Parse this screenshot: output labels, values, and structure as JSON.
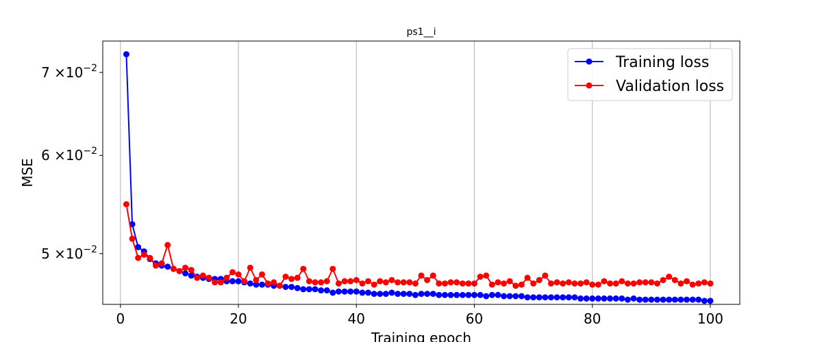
{
  "chart_data": {
    "type": "line",
    "title": "ps1__i",
    "xlabel": "Training epoch",
    "ylabel": "MSE",
    "xlim": [
      -3,
      105
    ],
    "ylim": [
      0.0455,
      0.0742
    ],
    "yscale": "log",
    "grid": "x-only",
    "legend_position": "top-right",
    "x_ticks": [
      0,
      20,
      40,
      60,
      80,
      100
    ],
    "x_tick_labels": [
      "0",
      "20",
      "40",
      "60",
      "80",
      "100"
    ],
    "y_ticks": [
      0.05,
      0.06,
      0.07
    ],
    "y_tick_labels": [
      {
        "mantissa": "5",
        "exp": "−2"
      },
      {
        "mantissa": "6",
        "exp": "−2"
      },
      {
        "mantissa": "7",
        "exp": "−2"
      }
    ],
    "y_tick_label_mid": "×10",
    "x": [
      1,
      2,
      3,
      4,
      5,
      6,
      7,
      8,
      9,
      10,
      11,
      12,
      13,
      14,
      15,
      16,
      17,
      18,
      19,
      20,
      21,
      22,
      23,
      24,
      25,
      26,
      27,
      28,
      29,
      30,
      31,
      32,
      33,
      34,
      35,
      36,
      37,
      38,
      39,
      40,
      41,
      42,
      43,
      44,
      45,
      46,
      47,
      48,
      49,
      50,
      51,
      52,
      53,
      54,
      55,
      56,
      57,
      58,
      59,
      60,
      61,
      62,
      63,
      64,
      65,
      66,
      67,
      68,
      69,
      70,
      71,
      72,
      73,
      74,
      75,
      76,
      77,
      78,
      79,
      80,
      81,
      82,
      83,
      84,
      85,
      86,
      87,
      88,
      89,
      90,
      91,
      92,
      93,
      94,
      95,
      96,
      97,
      98,
      99,
      100
    ],
    "series": [
      {
        "name": "Training loss",
        "color": "#0000ff",
        "values": [
          0.0724,
          0.0528,
          0.0506,
          0.0502,
          0.0495,
          0.0491,
          0.0489,
          0.0488,
          0.0486,
          0.0484,
          0.0482,
          0.048,
          0.0479,
          0.0478,
          0.0477,
          0.0477,
          0.0477,
          0.0475,
          0.0475,
          0.0475,
          0.0474,
          0.0473,
          0.0472,
          0.0472,
          0.0472,
          0.0471,
          0.0471,
          0.047,
          0.047,
          0.0469,
          0.0468,
          0.0468,
          0.0468,
          0.0467,
          0.0467,
          0.0465,
          0.0466,
          0.0466,
          0.0466,
          0.0466,
          0.0465,
          0.0465,
          0.0464,
          0.0464,
          0.0464,
          0.0465,
          0.0464,
          0.0464,
          0.0464,
          0.0463,
          0.0464,
          0.0464,
          0.0464,
          0.0463,
          0.0463,
          0.0463,
          0.0463,
          0.0463,
          0.0463,
          0.0463,
          0.0463,
          0.0462,
          0.0463,
          0.0463,
          0.0462,
          0.0462,
          0.0462,
          0.0462,
          0.0461,
          0.0461,
          0.0461,
          0.0461,
          0.0461,
          0.0461,
          0.0461,
          0.0461,
          0.0461,
          0.046,
          0.046,
          0.046,
          0.046,
          0.046,
          0.046,
          0.046,
          0.046,
          0.0459,
          0.046,
          0.0459,
          0.0459,
          0.0459,
          0.0459,
          0.0459,
          0.0459,
          0.0459,
          0.0459,
          0.0459,
          0.0459,
          0.0459,
          0.0458,
          0.0458
        ]
      },
      {
        "name": "Validation loss",
        "color": "#ff0000",
        "values": [
          0.0548,
          0.0514,
          0.0496,
          0.0499,
          0.0496,
          0.0489,
          0.0491,
          0.0508,
          0.0486,
          0.0484,
          0.0487,
          0.0485,
          0.0478,
          0.048,
          0.0478,
          0.0474,
          0.0474,
          0.0478,
          0.0483,
          0.0481,
          0.0475,
          0.0487,
          0.0476,
          0.0481,
          0.0473,
          0.0474,
          0.0471,
          0.0479,
          0.0477,
          0.0478,
          0.0486,
          0.0475,
          0.0474,
          0.0474,
          0.0475,
          0.0486,
          0.0473,
          0.0475,
          0.0475,
          0.0476,
          0.0473,
          0.0475,
          0.0472,
          0.0475,
          0.0474,
          0.0476,
          0.0474,
          0.0474,
          0.0474,
          0.0473,
          0.048,
          0.0476,
          0.048,
          0.0473,
          0.0473,
          0.0474,
          0.0474,
          0.0473,
          0.0473,
          0.0473,
          0.0479,
          0.048,
          0.0472,
          0.0474,
          0.0473,
          0.0475,
          0.0471,
          0.0472,
          0.0478,
          0.0473,
          0.0476,
          0.048,
          0.0473,
          0.0474,
          0.0473,
          0.0474,
          0.0473,
          0.0473,
          0.0474,
          0.0472,
          0.0472,
          0.0475,
          0.0473,
          0.0473,
          0.0475,
          0.0473,
          0.0473,
          0.0474,
          0.0474,
          0.0474,
          0.0473,
          0.0476,
          0.0479,
          0.0476,
          0.0473,
          0.0475,
          0.0472,
          0.0473,
          0.0474,
          0.0473
        ]
      }
    ]
  }
}
